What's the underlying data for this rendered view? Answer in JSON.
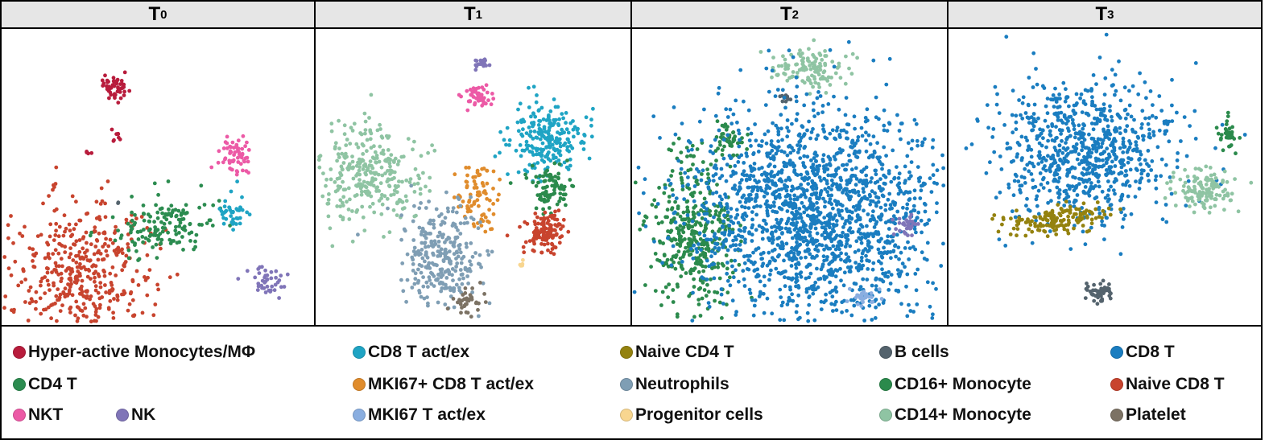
{
  "chart_data": {
    "type": "scatter",
    "panels": [
      {
        "label": "T",
        "subscript": "0",
        "clusters": [
          {
            "type": "Hyper-active Monocytes/MΦ",
            "cx": 140,
            "cy": 72,
            "sx": 10,
            "sy": 8,
            "n": 50
          },
          {
            "type": "Hyper-active Monocytes/MΦ",
            "cx": 143,
            "cy": 136,
            "sx": 3,
            "sy": 4,
            "n": 8
          },
          {
            "type": "Hyper-active Monocytes/MΦ",
            "cx": 107,
            "cy": 154,
            "sx": 2,
            "sy": 2,
            "n": 4
          },
          {
            "type": "Naive CD8 T",
            "cx": 100,
            "cy": 300,
            "sx": 45,
            "sy": 40,
            "n": 420,
            "rot": -0.55
          },
          {
            "type": "CD4 T",
            "cx": 200,
            "cy": 245,
            "sx": 35,
            "sy": 18,
            "n": 150,
            "rot": -0.2
          },
          {
            "type": "NKT",
            "cx": 290,
            "cy": 160,
            "sx": 10,
            "sy": 13,
            "n": 60
          },
          {
            "type": "CD8 T act/ex",
            "cx": 290,
            "cy": 230,
            "sx": 10,
            "sy": 12,
            "n": 40
          },
          {
            "type": "NK",
            "cx": 332,
            "cy": 315,
            "sx": 12,
            "sy": 10,
            "n": 40
          },
          {
            "type": "B cells",
            "cx": 145,
            "cy": 215,
            "sx": 2,
            "sy": 2,
            "n": 2
          }
        ]
      },
      {
        "label": "T",
        "subscript": "1",
        "clusters": [
          {
            "type": "NK",
            "cx": 206,
            "cy": 43,
            "sx": 6,
            "sy": 4,
            "n": 18
          },
          {
            "type": "NKT",
            "cx": 202,
            "cy": 84,
            "sx": 10,
            "sy": 8,
            "n": 50
          },
          {
            "type": "CD14+ Monocyte",
            "cx": 70,
            "cy": 180,
            "sx": 30,
            "sy": 32,
            "n": 300,
            "rot": 0.5
          },
          {
            "type": "MKI67+ CD8 T act/ex",
            "cx": 200,
            "cy": 205,
            "sx": 14,
            "sy": 22,
            "n": 80
          },
          {
            "type": "Neutrophils",
            "cx": 158,
            "cy": 283,
            "sx": 24,
            "sy": 30,
            "n": 280
          },
          {
            "type": "CD8 T act/ex",
            "cx": 283,
            "cy": 135,
            "sx": 24,
            "sy": 22,
            "n": 220
          },
          {
            "type": "CD16+ Monocyte",
            "cx": 292,
            "cy": 195,
            "sx": 15,
            "sy": 14,
            "n": 90
          },
          {
            "type": "Naive CD8 T",
            "cx": 286,
            "cy": 252,
            "sx": 12,
            "sy": 12,
            "n": 120
          },
          {
            "type": "Platelet",
            "cx": 188,
            "cy": 340,
            "sx": 8,
            "sy": 9,
            "n": 40
          },
          {
            "type": "Progenitor cells",
            "cx": 255,
            "cy": 294,
            "sx": 3,
            "sy": 2,
            "n": 6
          }
        ]
      },
      {
        "label": "T",
        "subscript": "2",
        "clusters": [
          {
            "type": "CD14+ Monocyte",
            "cx": 216,
            "cy": 48,
            "sx": 22,
            "sy": 12,
            "n": 120
          },
          {
            "type": "B cells",
            "cx": 190,
            "cy": 86,
            "sx": 4,
            "sy": 3,
            "n": 10
          },
          {
            "type": "CD16+ Monocyte",
            "cx": 120,
            "cy": 135,
            "sx": 8,
            "sy": 12,
            "n": 50
          },
          {
            "type": "CD16+ Monocyte",
            "cx": 75,
            "cy": 260,
            "sx": 28,
            "sy": 50,
            "n": 380
          },
          {
            "type": "CD8 T",
            "cx": 225,
            "cy": 230,
            "sx": 80,
            "sy": 70,
            "n": 1800
          },
          {
            "type": "NK",
            "cx": 342,
            "cy": 245,
            "sx": 7,
            "sy": 7,
            "n": 30
          },
          {
            "type": "MKI67 T act/ex",
            "cx": 285,
            "cy": 333,
            "sx": 10,
            "sy": 5,
            "n": 30
          }
        ]
      },
      {
        "label": "T",
        "subscript": "3",
        "clusters": [
          {
            "type": "CD8 T",
            "cx": 172,
            "cy": 150,
            "sx": 55,
            "sy": 45,
            "n": 800
          },
          {
            "type": "Naive CD4 T",
            "cx": 135,
            "cy": 238,
            "sx": 34,
            "sy": 9,
            "n": 150,
            "rot": -0.12
          },
          {
            "type": "CD16+ Monocyte",
            "cx": 347,
            "cy": 133,
            "sx": 7,
            "sy": 9,
            "n": 35
          },
          {
            "type": "CD14+ Monocyte",
            "cx": 316,
            "cy": 200,
            "sx": 18,
            "sy": 12,
            "n": 140
          },
          {
            "type": "B cells",
            "cx": 187,
            "cy": 327,
            "sx": 9,
            "sy": 6,
            "n": 50
          }
        ]
      }
    ],
    "legend": [
      {
        "name": "Hyper-active Monocytes/MΦ",
        "color": "#b81c3c"
      },
      {
        "name": "CD8 T act/ex",
        "color": "#1fa4c4"
      },
      {
        "name": "Naive CD4 T",
        "color": "#94820f"
      },
      {
        "name": "B cells",
        "color": "#54636d"
      },
      {
        "name": "CD8 T",
        "color": "#1a7dc0"
      },
      {
        "name": "CD4 T",
        "color": "#2c8c50"
      },
      {
        "name": "MKI67+ CD8 T act/ex",
        "color": "#e08c2c"
      },
      {
        "name": "Neutrophils",
        "color": "#7f9eb4"
      },
      {
        "name": "CD16+ Monocyte",
        "color": "#2b8a4c"
      },
      {
        "name": "Naive CD8 T",
        "color": "#c8442e"
      },
      {
        "name": "NKT",
        "color": "#ec5aa6"
      },
      {
        "name": "NK",
        "color": "#8075b8"
      },
      {
        "name": "MKI67 T act/ex",
        "color": "#8aaee0"
      },
      {
        "name": "Progenitor cells",
        "color": "#f8d690"
      },
      {
        "name": "CD14+ Monocyte",
        "color": "#8fc4a3"
      },
      {
        "name": "Platelet",
        "color": "#7c7264"
      }
    ]
  }
}
